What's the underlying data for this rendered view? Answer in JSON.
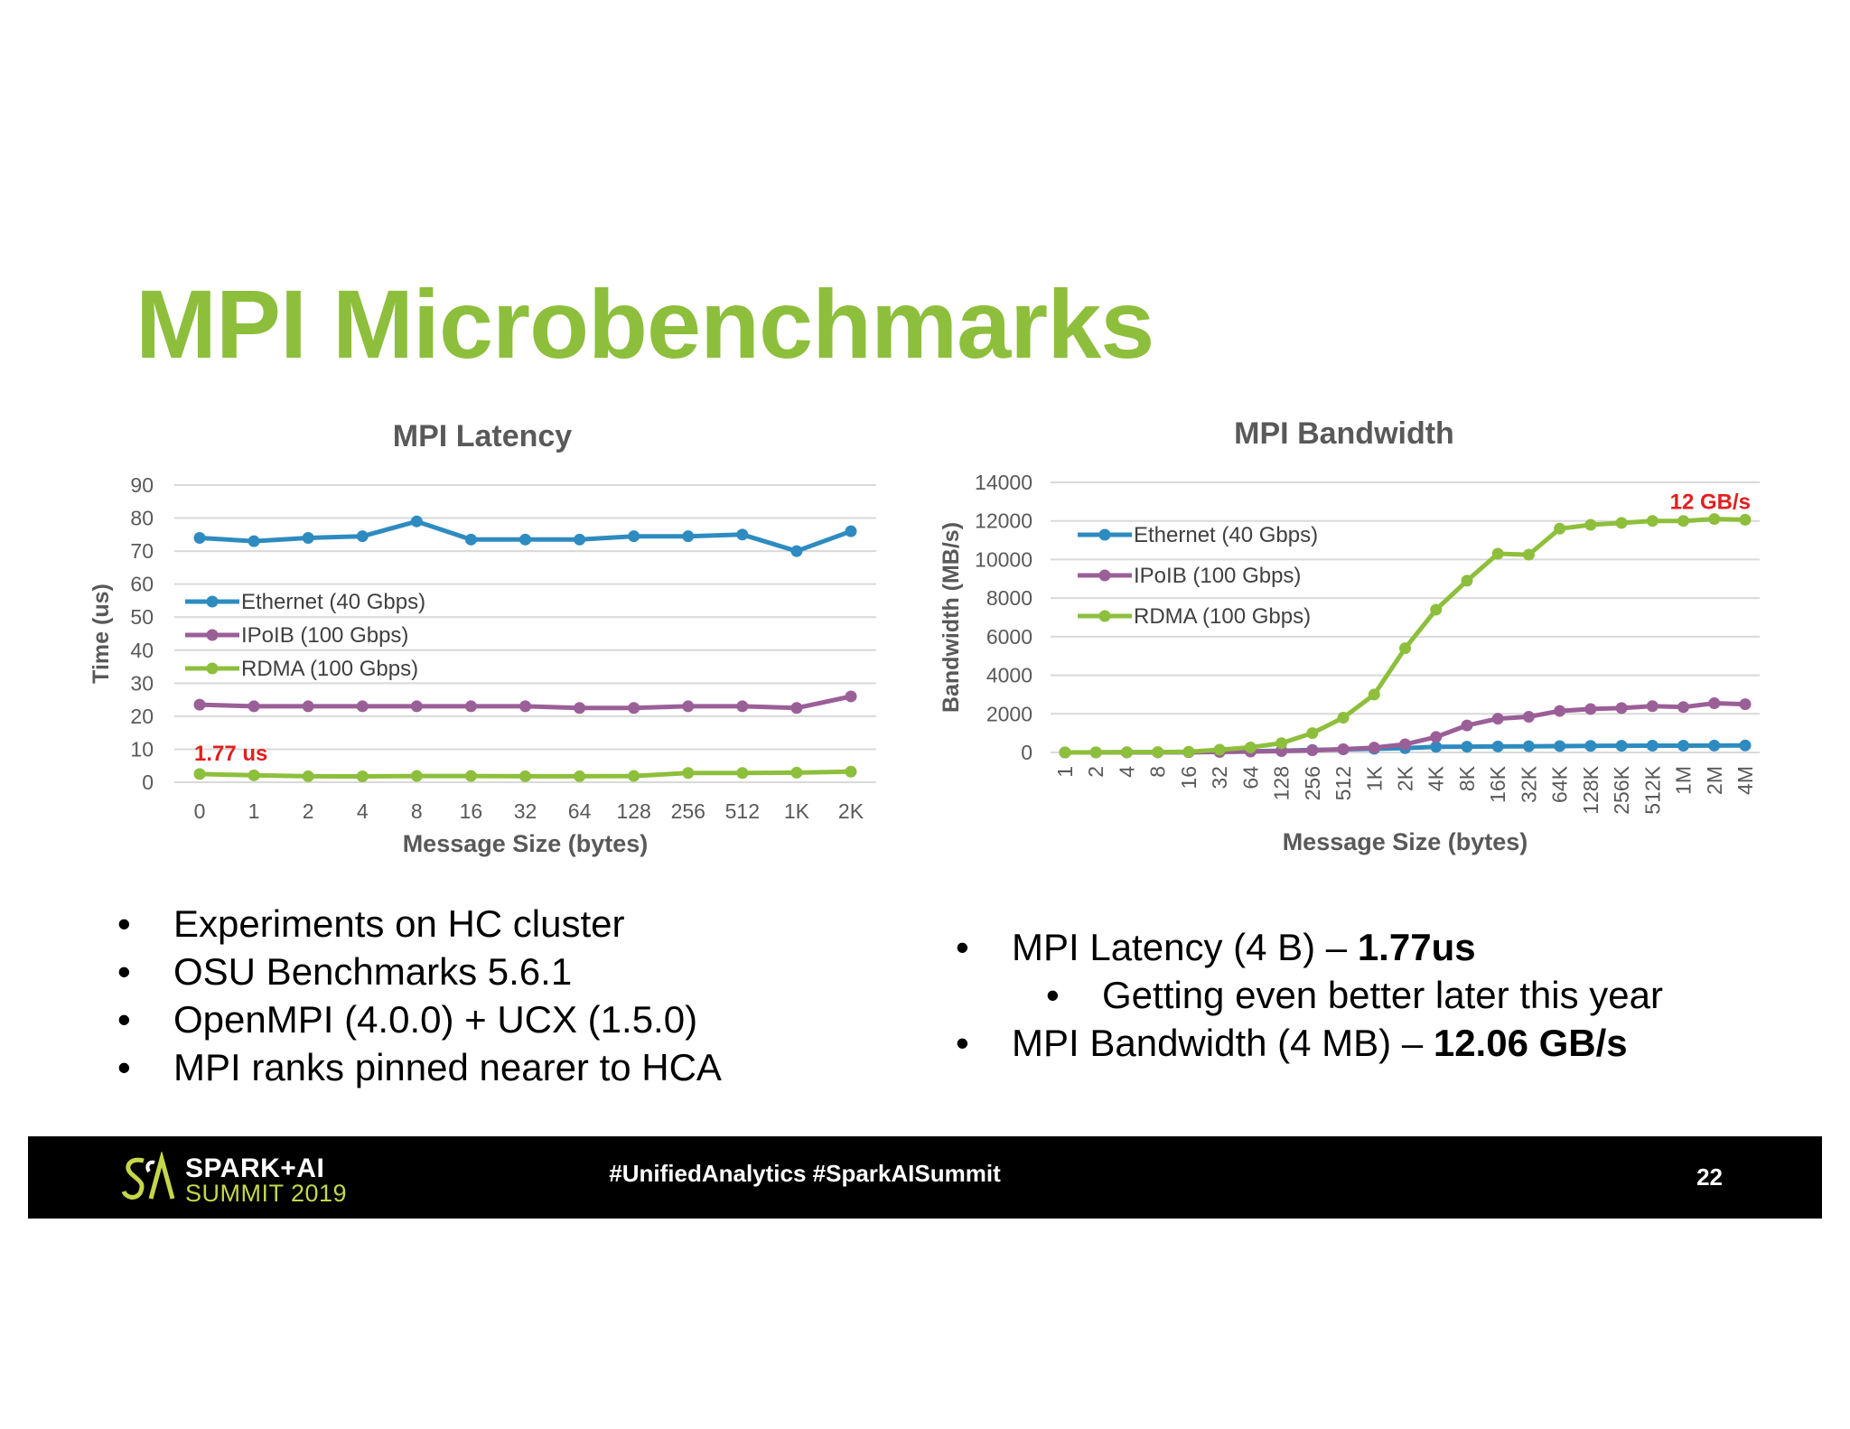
{
  "slide": {
    "title": "MPI Microbenchmarks",
    "bullets_left": [
      "Experiments on HC cluster",
      "OSU Benchmarks 5.6.1",
      "OpenMPI (4.0.0) + UCX (1.5.0)",
      "MPI ranks pinned nearer to HCA"
    ],
    "bullets_right": [
      {
        "text": "MPI Latency (4 B) – ",
        "bold": "1.77us",
        "level": 1
      },
      {
        "text": "Getting even better later this year",
        "bold": "",
        "level": 2
      },
      {
        "text": "MPI Bandwidth (4 MB) – ",
        "bold": "12.06 GB/s",
        "level": 1
      }
    ],
    "bullet_glyph": "•"
  },
  "footer": {
    "logo_line1": "SPARK+AI",
    "logo_line2": "SUMMIT 2019",
    "hashtags": "#UnifiedAnalytics #SparkAISummit",
    "page_number": "22"
  },
  "colors": {
    "title": "#8dbf3c",
    "ethernet": "#2e8bc0",
    "ipoib": "#9b5f98",
    "rdma": "#8dbf3c",
    "annotation": "#e02020",
    "axis_text": "#595959",
    "grid": "#d9d9d9"
  },
  "chart_data": [
    {
      "type": "line",
      "title": "MPI Latency",
      "xlabel": "Message Size (bytes)",
      "ylabel": "Time (us)",
      "categories": [
        "0",
        "1",
        "2",
        "4",
        "8",
        "16",
        "32",
        "64",
        "128",
        "256",
        "512",
        "1K",
        "2K"
      ],
      "ylim": [
        0,
        90
      ],
      "yticks": [
        0,
        10,
        20,
        30,
        40,
        50,
        60,
        70,
        80,
        90
      ],
      "grid": true,
      "legend": "left",
      "series": [
        {
          "name": "Ethernet (40 Gbps)",
          "color": "#2e8bc0",
          "values": [
            74,
            73,
            74,
            74.5,
            79,
            73.5,
            73.5,
            73.5,
            74.5,
            74.5,
            75,
            70,
            76
          ]
        },
        {
          "name": "IPoIB (100 Gbps)",
          "color": "#9b5f98",
          "values": [
            23.5,
            23,
            23,
            23,
            23,
            23,
            23,
            22.5,
            22.5,
            23,
            23,
            22.5,
            26
          ]
        },
        {
          "name": "RDMA (100 Gbps)",
          "color": "#8dbf3c",
          "values": [
            2.5,
            2.1,
            1.8,
            1.77,
            1.9,
            1.9,
            1.8,
            1.8,
            1.9,
            2.8,
            2.8,
            2.9,
            3.2
          ]
        }
      ],
      "annotations": [
        {
          "text": "1.77 us",
          "series": "RDMA (100 Gbps)",
          "category": "0"
        }
      ]
    },
    {
      "type": "line",
      "title": "MPI Bandwidth",
      "xlabel": "Message Size (bytes)",
      "ylabel": "Bandwidth (MB/s)",
      "categories": [
        "1",
        "2",
        "4",
        "8",
        "16",
        "32",
        "64",
        "128",
        "256",
        "512",
        "1K",
        "2K",
        "4K",
        "8K",
        "16K",
        "32K",
        "64K",
        "128K",
        "256K",
        "512K",
        "1M",
        "2M",
        "4M"
      ],
      "ylim": [
        0,
        14000
      ],
      "yticks": [
        0,
        2000,
        4000,
        6000,
        8000,
        10000,
        12000,
        14000
      ],
      "grid": true,
      "legend": "top-left",
      "series": [
        {
          "name": "Ethernet (40 Gbps)",
          "color": "#2e8bc0",
          "values": [
            1,
            2,
            4,
            8,
            15,
            30,
            55,
            90,
            130,
            160,
            190,
            220,
            290,
            300,
            310,
            320,
            330,
            340,
            345,
            350,
            350,
            355,
            360
          ]
        },
        {
          "name": "IPoIB (100 Gbps)",
          "color": "#9b5f98",
          "values": [
            1,
            2,
            4,
            8,
            15,
            25,
            45,
            70,
            110,
            170,
            250,
            420,
            800,
            1400,
            1750,
            1850,
            2150,
            2250,
            2300,
            2400,
            2350,
            2550,
            2500
          ]
        },
        {
          "name": "RDMA (100 Gbps)",
          "color": "#8dbf3c",
          "values": [
            2,
            4,
            9,
            18,
            36,
            140,
            260,
            480,
            1000,
            1800,
            3000,
            5400,
            7400,
            8900,
            10300,
            10250,
            11600,
            11800,
            11900,
            12000,
            12000,
            12100,
            12060
          ]
        }
      ],
      "annotations": [
        {
          "text": "12 GB/s",
          "series": "RDMA (100 Gbps)",
          "category": "4M"
        }
      ]
    }
  ]
}
